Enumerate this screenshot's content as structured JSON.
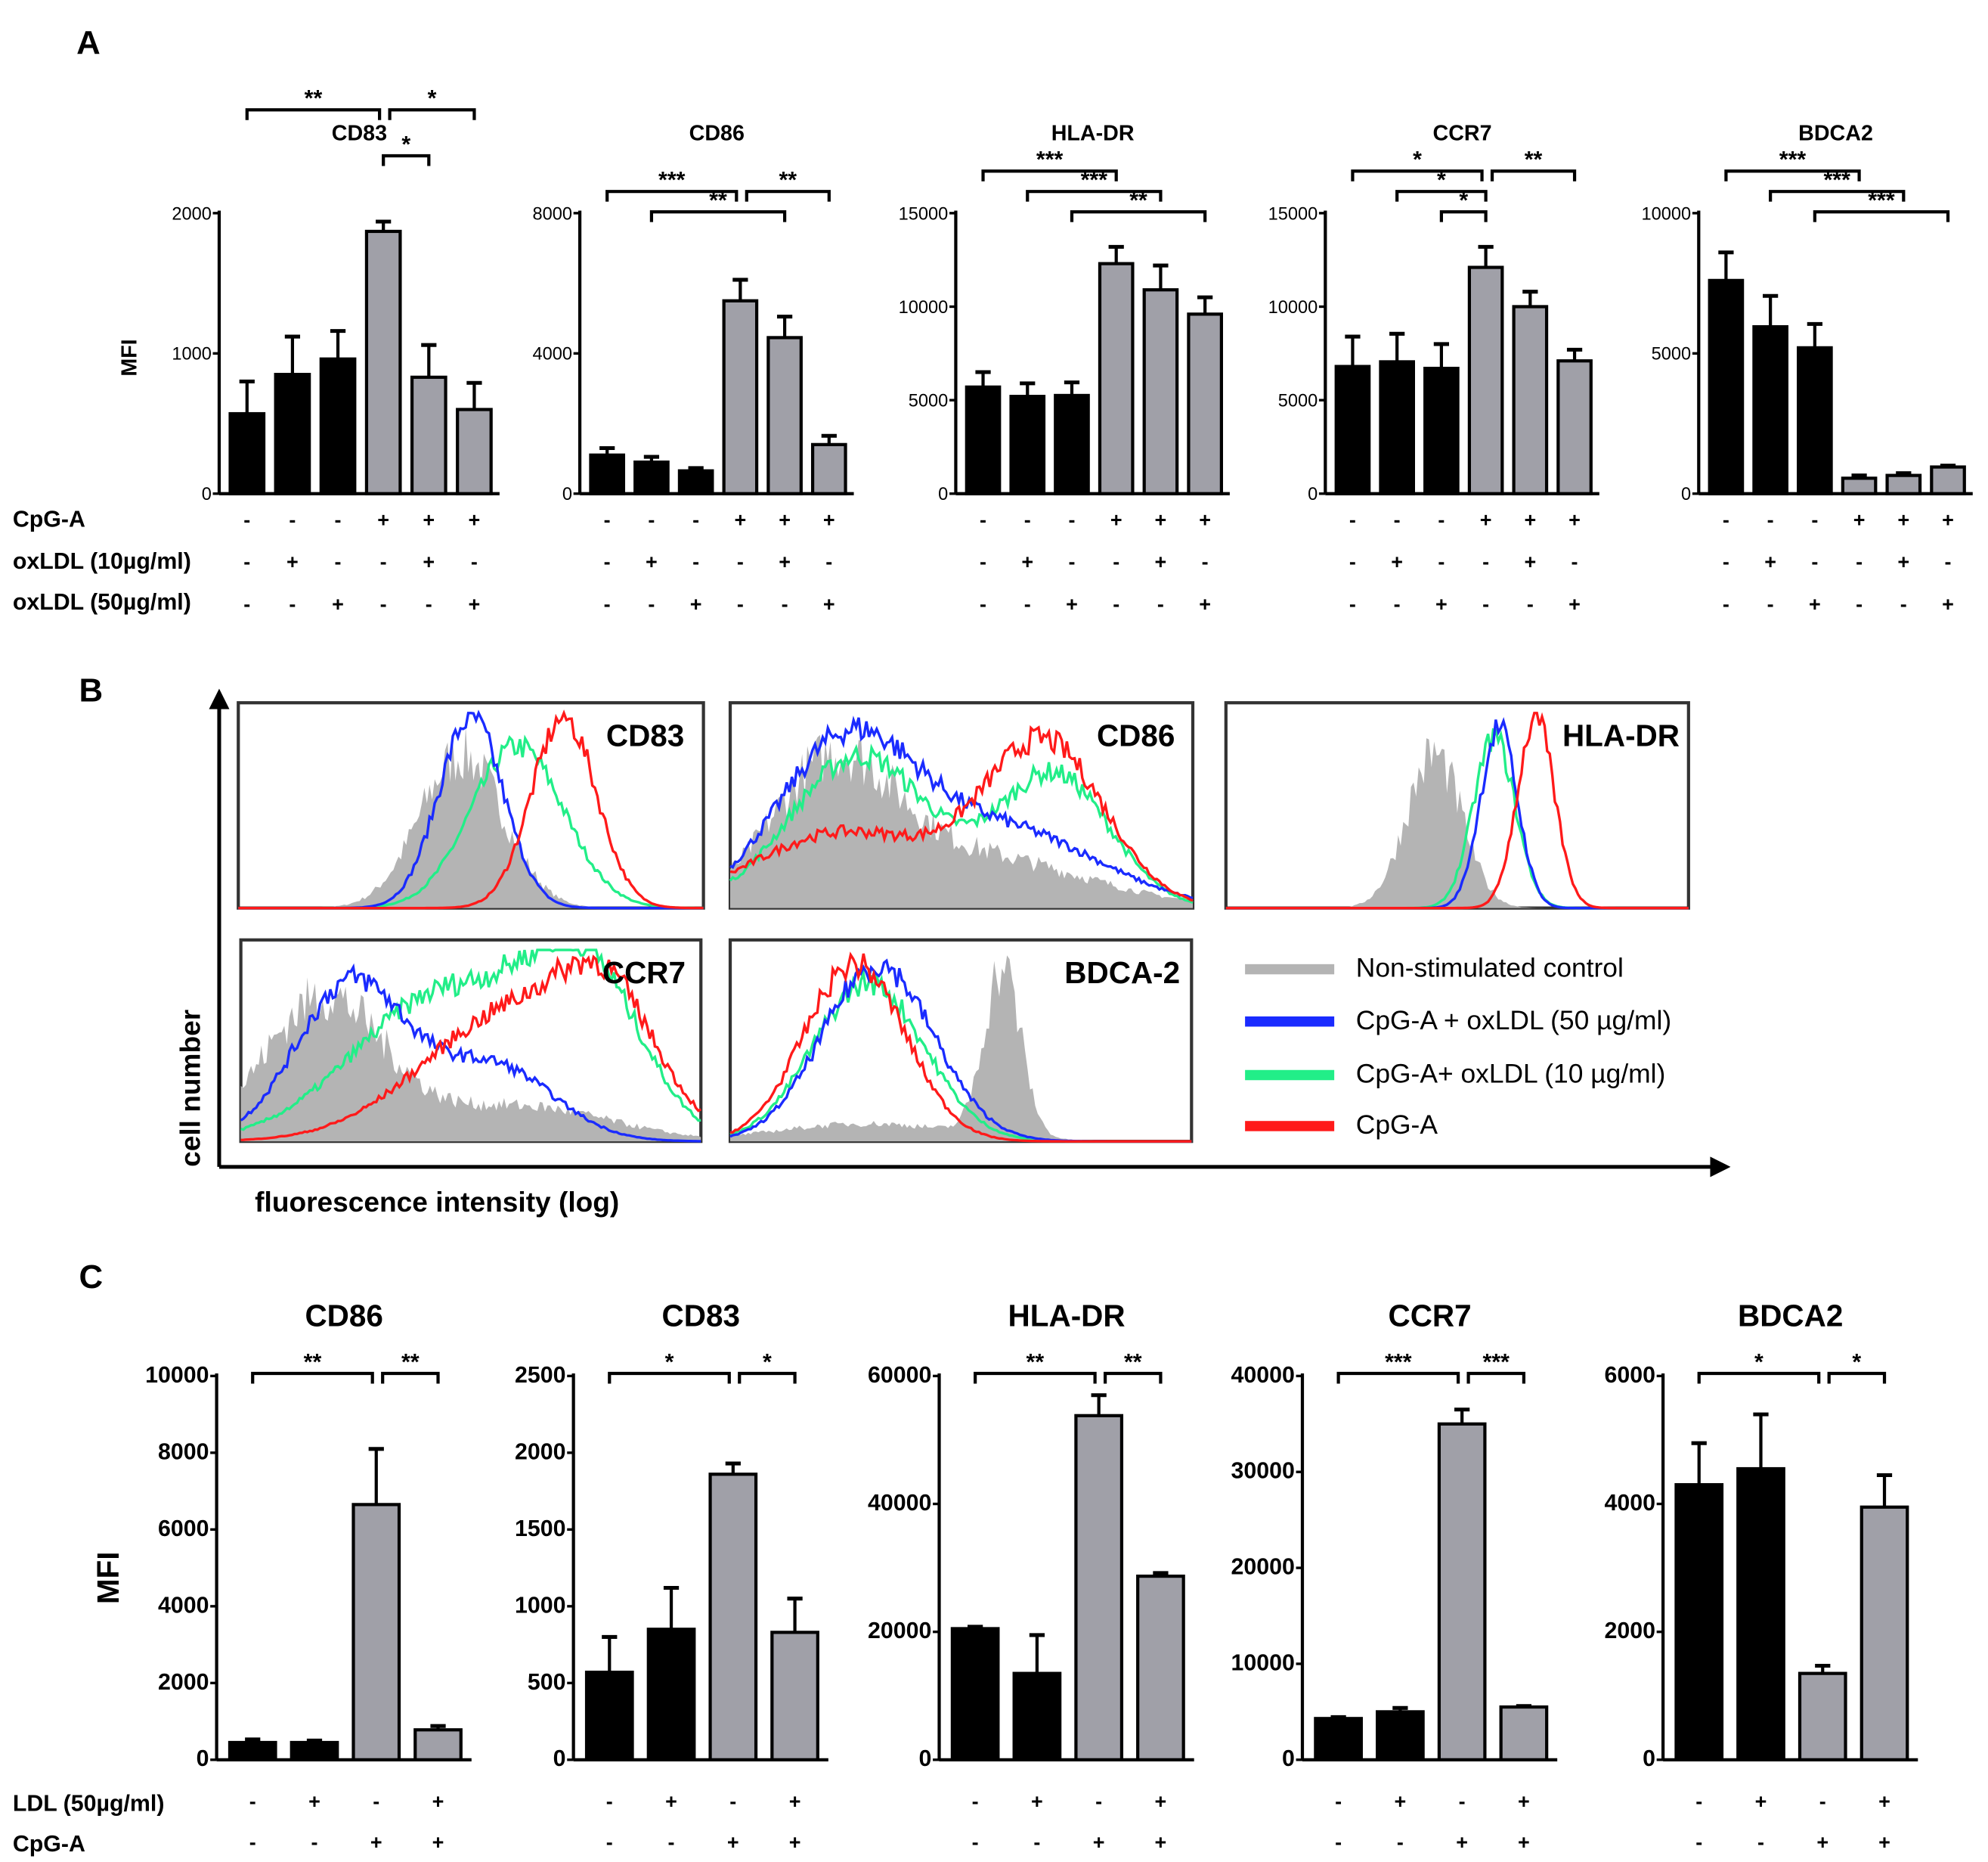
{
  "panel_labels": {
    "a": "A",
    "b": "B",
    "c": "C"
  },
  "colors": {
    "black_bar": "#000000",
    "gray_bar": "#a0a0a8",
    "control": "#b4b4b4",
    "oxldl50": "#1a2bff",
    "oxldl10": "#22ee88",
    "cpga": "#ff1a1a"
  },
  "panel_a": {
    "ylabel": "MFI",
    "row_labels": [
      "CpG-A",
      "oxLDL (10µg/ml)",
      "oxLDL (50µg/ml)"
    ],
    "conditions": [
      [
        "-",
        "-",
        "-",
        "+",
        "+",
        "+"
      ],
      [
        "-",
        "+",
        "-",
        "-",
        "+",
        "-"
      ],
      [
        "-",
        "-",
        "+",
        "-",
        "-",
        "+"
      ]
    ]
  },
  "panel_b": {
    "ylabel": "cell number",
    "xlabel": "fluorescence intensity (log)",
    "histograms": [
      "CD83",
      "CD86",
      "HLA-DR",
      "CCR7",
      "BDCA-2"
    ],
    "legend": [
      "Non-stimulated control",
      "CpG-A + oxLDL (50 µg/ml)",
      "CpG-A+ oxLDL (10 µg/ml)",
      "CpG-A"
    ]
  },
  "panel_c": {
    "ylabel": "MFI",
    "row_labels": [
      "LDL (50µg/ml)",
      "CpG-A"
    ],
    "conditions": [
      [
        "-",
        "+",
        "-",
        "+"
      ],
      [
        "-",
        "-",
        "+",
        "+"
      ]
    ]
  },
  "chart_data": [
    {
      "type": "bar",
      "panel": "A",
      "title": "CD83",
      "ylabel": "MFI",
      "ylim": [
        0,
        2000
      ],
      "yticks": [
        0,
        1000,
        2000
      ],
      "values": [
        570,
        850,
        960,
        1870,
        830,
        600
      ],
      "errors": [
        230,
        270,
        200,
        70,
        230,
        190
      ],
      "fill": [
        "black",
        "black",
        "black",
        "gray",
        "gray",
        "gray"
      ],
      "significance": [
        {
          "from": 0,
          "to": 3,
          "label": "**",
          "level": 3
        },
        {
          "from": 3,
          "to": 5,
          "label": "*",
          "level": 3
        },
        {
          "from": 3,
          "to": 4,
          "label": "*",
          "level": 2
        }
      ]
    },
    {
      "type": "bar",
      "panel": "A",
      "title": "CD86",
      "ylabel": "MFI",
      "ylim": [
        0,
        8000
      ],
      "yticks": [
        0,
        4000,
        8000
      ],
      "values": [
        1100,
        900,
        650,
        5500,
        4450,
        1400
      ],
      "errors": [
        200,
        150,
        80,
        600,
        600,
        250
      ],
      "fill": [
        "black",
        "black",
        "black",
        "gray",
        "gray",
        "gray"
      ],
      "significance": [
        {
          "from": 0,
          "to": 3,
          "label": "***",
          "level": 2
        },
        {
          "from": 3,
          "to": 5,
          "label": "**",
          "level": 2
        },
        {
          "from": 1,
          "to": 4,
          "label": "**",
          "level": 1
        }
      ]
    },
    {
      "type": "bar",
      "panel": "A",
      "title": "HLA-DR",
      "ylabel": "MFI",
      "ylim": [
        0,
        15000
      ],
      "yticks": [
        0,
        5000,
        10000,
        15000
      ],
      "values": [
        5700,
        5200,
        5250,
        12300,
        10900,
        9600
      ],
      "errors": [
        800,
        700,
        700,
        900,
        1300,
        900
      ],
      "fill": [
        "black",
        "black",
        "black",
        "gray",
        "gray",
        "gray"
      ],
      "significance": [
        {
          "from": 0,
          "to": 3,
          "label": "***",
          "level": 3
        },
        {
          "from": 1,
          "to": 4,
          "label": "***",
          "level": 2
        },
        {
          "from": 2,
          "to": 5,
          "label": "**",
          "level": 1
        }
      ]
    },
    {
      "type": "bar",
      "panel": "A",
      "title": "CCR7",
      "ylabel": "MFI",
      "ylim": [
        0,
        15000
      ],
      "yticks": [
        0,
        5000,
        10000,
        15000
      ],
      "values": [
        6800,
        7050,
        6700,
        12100,
        10000,
        7100
      ],
      "errors": [
        1600,
        1500,
        1300,
        1100,
        800,
        600
      ],
      "fill": [
        "black",
        "black",
        "black",
        "gray",
        "gray",
        "gray"
      ],
      "significance": [
        {
          "from": 0,
          "to": 3,
          "label": "*",
          "level": 3
        },
        {
          "from": 3,
          "to": 5,
          "label": "**",
          "level": 3
        },
        {
          "from": 1,
          "to": 3,
          "label": "*",
          "level": 2
        },
        {
          "from": 2,
          "to": 3,
          "label": "*",
          "level": 1
        }
      ]
    },
    {
      "type": "bar",
      "panel": "A",
      "title": "BDCA2",
      "ylabel": "MFI",
      "ylim": [
        0,
        10000
      ],
      "yticks": [
        0,
        5000,
        10000
      ],
      "values": [
        7600,
        5950,
        5200,
        550,
        650,
        950
      ],
      "errors": [
        1000,
        1100,
        850,
        100,
        80,
        50
      ],
      "fill": [
        "black",
        "black",
        "black",
        "gray",
        "gray",
        "gray"
      ],
      "significance": [
        {
          "from": 0,
          "to": 3,
          "label": "***",
          "level": 3
        },
        {
          "from": 1,
          "to": 4,
          "label": "***",
          "level": 2
        },
        {
          "from": 2,
          "to": 5,
          "label": "***",
          "level": 1
        }
      ]
    },
    {
      "type": "bar",
      "panel": "C",
      "title": "CD86",
      "ylabel": "MFI",
      "ylim": [
        0,
        10000
      ],
      "yticks": [
        0,
        2000,
        4000,
        6000,
        8000,
        10000
      ],
      "values": [
        450,
        450,
        6650,
        780
      ],
      "errors": [
        80,
        50,
        1450,
        100
      ],
      "fill": [
        "black",
        "black",
        "gray",
        "gray"
      ],
      "significance": [
        {
          "from": 0,
          "to": 2,
          "label": "**",
          "level": 1
        },
        {
          "from": 2,
          "to": 3,
          "label": "**",
          "level": 1
        }
      ]
    },
    {
      "type": "bar",
      "panel": "C",
      "title": "CD83",
      "ylabel": "MFI",
      "ylim": [
        0,
        2500
      ],
      "yticks": [
        0,
        500,
        1000,
        1500,
        2000,
        2500
      ],
      "values": [
        570,
        850,
        1860,
        830
      ],
      "errors": [
        230,
        270,
        70,
        220
      ],
      "fill": [
        "black",
        "black",
        "gray",
        "gray"
      ],
      "significance": [
        {
          "from": 0,
          "to": 2,
          "label": "*",
          "level": 1
        },
        {
          "from": 2,
          "to": 3,
          "label": "*",
          "level": 1
        }
      ]
    },
    {
      "type": "bar",
      "panel": "C",
      "title": "HLA-DR",
      "ylabel": "MFI",
      "ylim": [
        0,
        60000
      ],
      "yticks": [
        0,
        20000,
        40000,
        60000
      ],
      "values": [
        20500,
        13500,
        53800,
        28700
      ],
      "errors": [
        300,
        6000,
        3200,
        500
      ],
      "fill": [
        "black",
        "black",
        "gray",
        "gray"
      ],
      "significance": [
        {
          "from": 0,
          "to": 2,
          "label": "**",
          "level": 1
        },
        {
          "from": 2,
          "to": 3,
          "label": "**",
          "level": 1
        }
      ]
    },
    {
      "type": "bar",
      "panel": "C",
      "title": "CCR7",
      "ylabel": "MFI",
      "ylim": [
        0,
        40000
      ],
      "yticks": [
        0,
        10000,
        20000,
        30000,
        40000
      ],
      "values": [
        4300,
        5000,
        35000,
        5500
      ],
      "errors": [
        150,
        400,
        1500,
        100
      ],
      "fill": [
        "black",
        "black",
        "gray",
        "gray"
      ],
      "significance": [
        {
          "from": 0,
          "to": 2,
          "label": "***",
          "level": 1
        },
        {
          "from": 2,
          "to": 3,
          "label": "***",
          "level": 1
        }
      ]
    },
    {
      "type": "bar",
      "panel": "C",
      "title": "BDCA2",
      "ylabel": "MFI",
      "ylim": [
        0,
        6000
      ],
      "yticks": [
        0,
        2000,
        4000,
        6000
      ],
      "values": [
        4300,
        4550,
        1350,
        3950
      ],
      "errors": [
        650,
        850,
        120,
        500
      ],
      "fill": [
        "black",
        "black",
        "gray",
        "gray"
      ],
      "significance": [
        {
          "from": 0,
          "to": 2,
          "label": "*",
          "level": 1
        },
        {
          "from": 2,
          "to": 3,
          "label": "*",
          "level": 1
        }
      ]
    }
  ]
}
